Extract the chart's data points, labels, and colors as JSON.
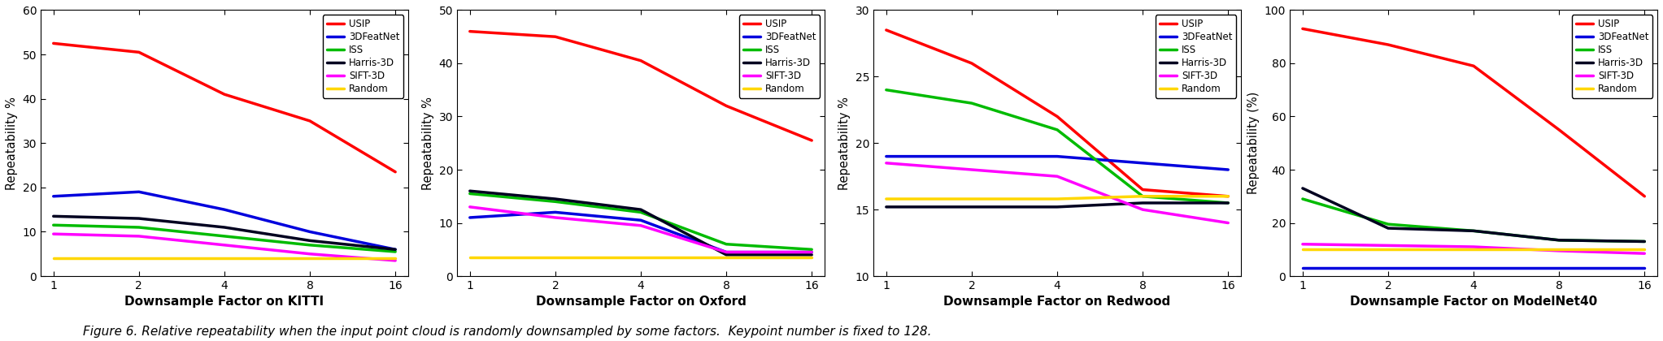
{
  "x_positions": [
    0,
    1,
    2,
    3,
    4
  ],
  "x_labels": [
    "1",
    "2",
    "4",
    "8",
    "16"
  ],
  "panels": [
    {
      "xlabel": "Downsample Factor on KITTI",
      "ylabel": "Repeatability %",
      "ylim": [
        0,
        60
      ],
      "yticks": [
        0,
        10,
        20,
        30,
        40,
        50,
        60
      ],
      "series": {
        "USIP": [
          52.5,
          50.5,
          41.0,
          35.0,
          23.5
        ],
        "3DFeatNet": [
          18.0,
          19.0,
          15.0,
          10.0,
          6.0
        ],
        "ISS": [
          11.5,
          11.0,
          9.0,
          7.0,
          5.5
        ],
        "Harris-3D": [
          13.5,
          13.0,
          11.0,
          8.0,
          6.0
        ],
        "SIFT-3D": [
          9.5,
          9.0,
          7.0,
          5.0,
          3.5
        ],
        "Random": [
          4.0,
          4.0,
          4.0,
          4.0,
          4.0
        ]
      }
    },
    {
      "xlabel": "Downsample Factor on Oxford",
      "ylabel": "Repeatability %",
      "ylim": [
        0,
        50
      ],
      "yticks": [
        0,
        10,
        20,
        30,
        40,
        50
      ],
      "series": {
        "USIP": [
          46.0,
          45.0,
          40.5,
          32.0,
          25.5
        ],
        "3DFeatNet": [
          11.0,
          12.0,
          10.5,
          4.5,
          4.5
        ],
        "ISS": [
          15.5,
          14.0,
          12.0,
          6.0,
          5.0
        ],
        "Harris-3D": [
          16.0,
          14.5,
          12.5,
          4.0,
          4.0
        ],
        "SIFT-3D": [
          13.0,
          11.0,
          9.5,
          4.5,
          4.5
        ],
        "Random": [
          3.5,
          3.5,
          3.5,
          3.5,
          3.5
        ]
      }
    },
    {
      "xlabel": "Downsample Factor on Redwood",
      "ylabel": "Repeatability %",
      "ylim": [
        10,
        30
      ],
      "yticks": [
        10,
        15,
        20,
        25,
        30
      ],
      "series": {
        "USIP": [
          28.5,
          26.0,
          22.0,
          16.5,
          16.0
        ],
        "3DFeatNet": [
          19.0,
          19.0,
          19.0,
          18.5,
          18.0
        ],
        "ISS": [
          24.0,
          23.0,
          21.0,
          16.0,
          15.5
        ],
        "Harris-3D": [
          15.2,
          15.2,
          15.2,
          15.5,
          15.5
        ],
        "SIFT-3D": [
          18.5,
          18.0,
          17.5,
          15.0,
          14.0
        ],
        "Random": [
          15.8,
          15.8,
          15.8,
          16.0,
          16.0
        ]
      }
    },
    {
      "xlabel": "Downsample Factor on ModelNet40",
      "ylabel": "Repeatability (%)",
      "ylim": [
        0,
        100
      ],
      "yticks": [
        0,
        20,
        40,
        60,
        80,
        100
      ],
      "series": {
        "USIP": [
          93.0,
          87.0,
          79.0,
          55.0,
          30.0
        ],
        "3DFeatNet": [
          3.0,
          3.0,
          3.0,
          3.0,
          3.0
        ],
        "ISS": [
          29.0,
          19.5,
          17.0,
          13.5,
          13.0
        ],
        "Harris-3D": [
          33.0,
          18.0,
          17.0,
          13.5,
          13.0
        ],
        "SIFT-3D": [
          12.0,
          11.5,
          11.0,
          9.5,
          8.5
        ],
        "Random": [
          10.0,
          10.0,
          10.0,
          10.0,
          10.0
        ]
      }
    }
  ],
  "colors": {
    "USIP": "#ff0000",
    "3DFeatNet": "#0000dd",
    "ISS": "#00bb00",
    "Harris-3D": "#000020",
    "SIFT-3D": "#ff00ff",
    "Random": "#ffd700"
  },
  "series_order": [
    "USIP",
    "3DFeatNet",
    "ISS",
    "Harris-3D",
    "SIFT-3D",
    "Random"
  ],
  "linewidth": 2.5,
  "caption": "Figure 6. Relative repeatability when the input point cloud is randomly downsampled by some factors.  Keypoint number is fixed to 128."
}
